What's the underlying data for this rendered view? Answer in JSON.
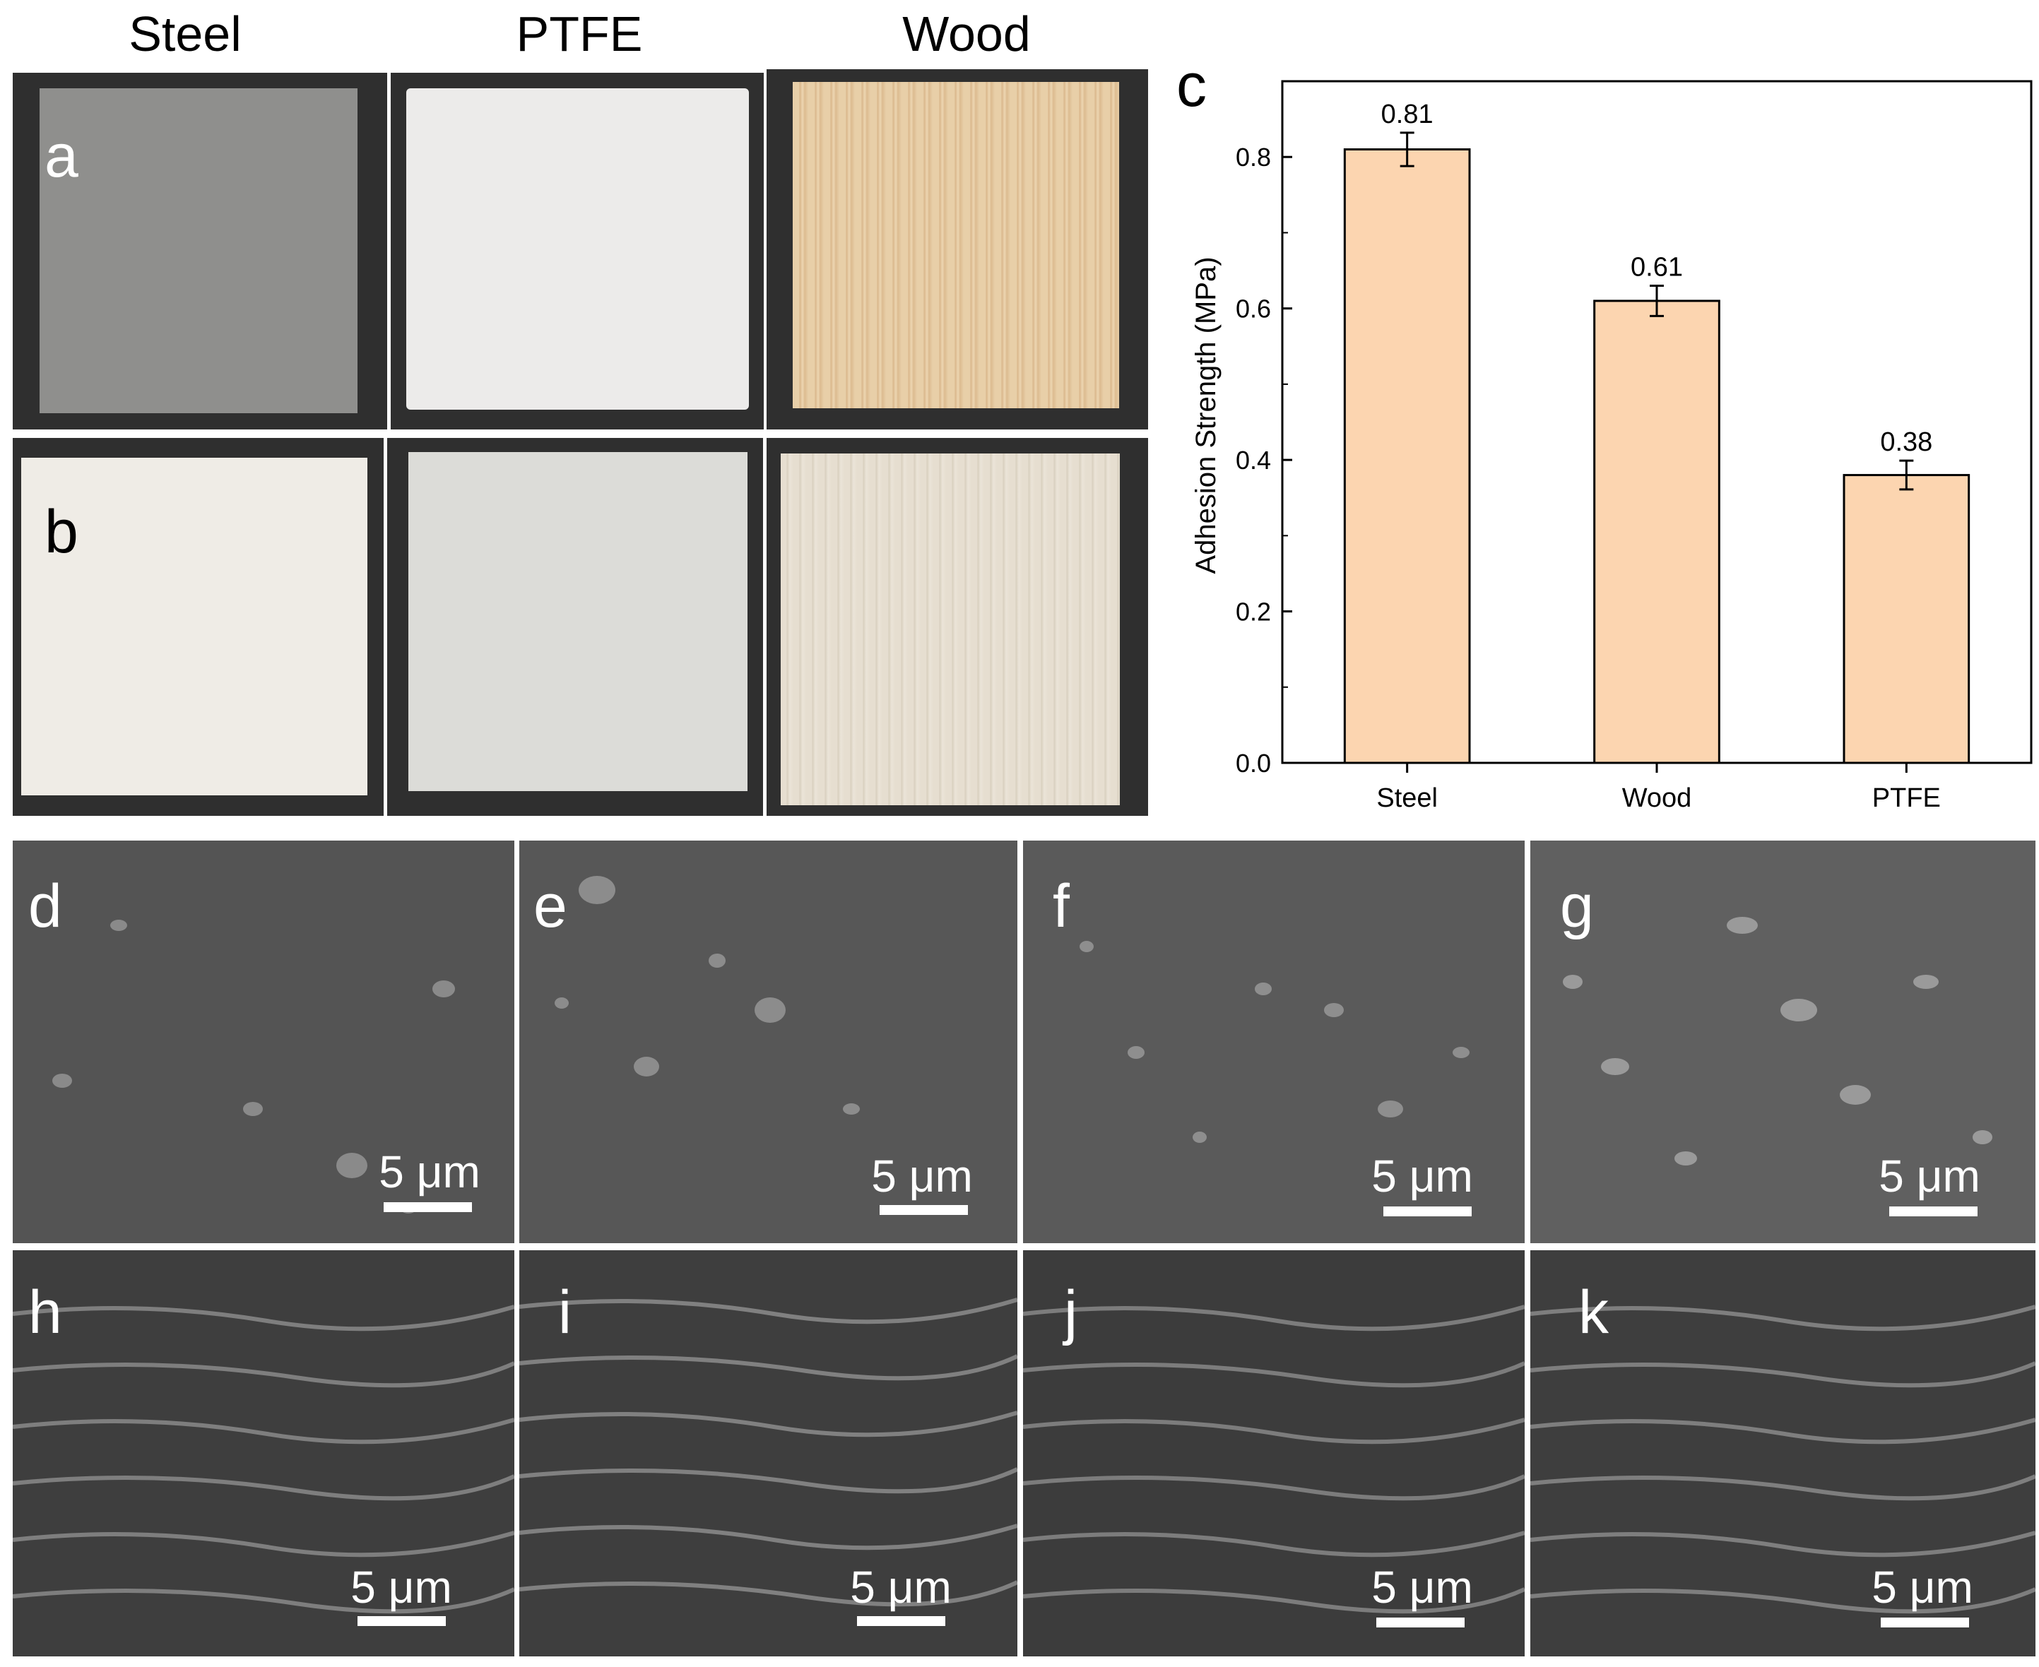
{
  "column_titles": [
    "Steel",
    "PTFE",
    "Wood"
  ],
  "panel_labels": {
    "a": "a",
    "b": "b",
    "c": "c",
    "d": "d",
    "e": "e",
    "f": "f",
    "g": "g",
    "h": "h",
    "i": "i",
    "j": "j",
    "k": "k"
  },
  "scale_bar_label": "5 μm",
  "colors": {
    "bar_fill": "#fcd5b0",
    "bar_stroke": "#000000",
    "steel_surface": "#8f8f8d",
    "ptfe_surface": "#ecebea",
    "wood_surface": "#e6c9a0",
    "coated_surface": "#efece6",
    "sem_background": "#5c5c5c"
  },
  "chart_data": {
    "type": "bar",
    "categories": [
      "Steel",
      "Wood",
      "PTFE"
    ],
    "values": [
      0.81,
      0.61,
      0.38
    ],
    "errors": [
      0.022,
      0.02,
      0.019
    ],
    "data_labels": [
      "0.81",
      "0.61",
      "0.38"
    ],
    "ylabel": "Adhesion Strength (MPa)",
    "xlabel": "",
    "ylim": [
      0,
      0.9
    ],
    "yticks": [
      0.0,
      0.2,
      0.4,
      0.6,
      0.8
    ],
    "ytick_labels": [
      "0.0",
      "0.2",
      "0.4",
      "0.6",
      "0.8"
    ],
    "grid": false,
    "legend": "none"
  }
}
